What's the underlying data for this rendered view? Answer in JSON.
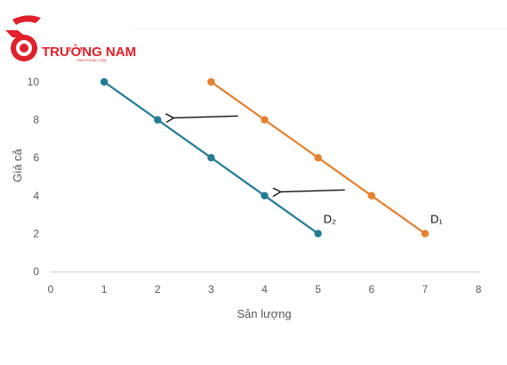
{
  "logo": {
    "text": "TRƯỜNG NAM",
    "sub_text": "VNHOTLINE.COM",
    "color": "#e0202a"
  },
  "chart_data": {
    "type": "line",
    "title": "",
    "xlabel": "Sản lượng",
    "ylabel": "Giá cả",
    "xlim": [
      0,
      8
    ],
    "ylim": [
      0,
      10
    ],
    "x_ticks": [
      0,
      1,
      2,
      3,
      4,
      5,
      6,
      7,
      8
    ],
    "y_ticks": [
      0,
      2,
      4,
      6,
      8,
      10
    ],
    "grid": false,
    "series": [
      {
        "name": "D₂",
        "color": "#237b95",
        "points": [
          [
            1,
            10
          ],
          [
            2,
            8
          ],
          [
            3,
            6
          ],
          [
            4,
            4
          ],
          [
            5,
            2
          ]
        ]
      },
      {
        "name": "D₁",
        "color": "#e5802c",
        "points": [
          [
            3,
            10
          ],
          [
            4,
            8
          ],
          [
            5,
            6
          ],
          [
            6,
            4
          ],
          [
            7,
            2
          ]
        ]
      }
    ],
    "annotations": [
      {
        "type": "arrow",
        "from": [
          3.5,
          8.2
        ],
        "to": [
          2.3,
          8.1
        ]
      },
      {
        "type": "arrow",
        "from": [
          5.5,
          4.3
        ],
        "to": [
          4.3,
          4.2
        ]
      }
    ]
  }
}
